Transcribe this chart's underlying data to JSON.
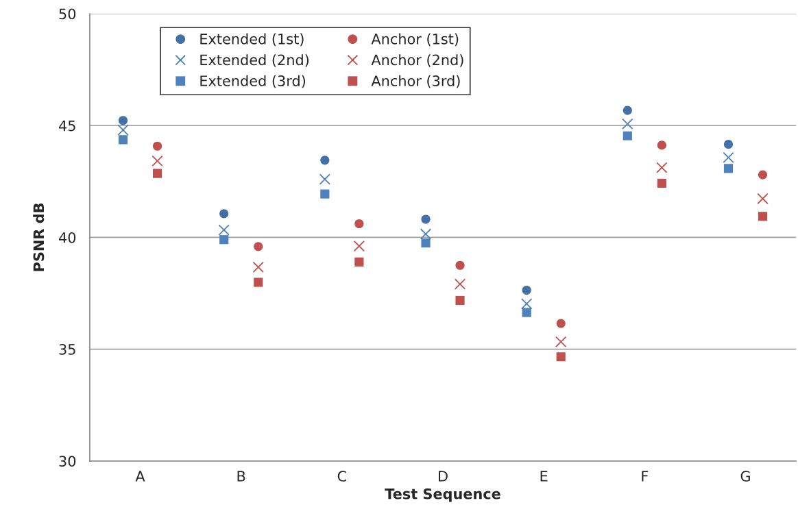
{
  "chart_data": {
    "type": "scatter",
    "xlabel": "Test Sequence",
    "ylabel": "PSNR dB",
    "categories": [
      "A",
      "B",
      "C",
      "D",
      "E",
      "F",
      "G"
    ],
    "ylim": [
      30,
      50
    ],
    "yticks": [
      30,
      35,
      40,
      45,
      50
    ],
    "grid": "y",
    "legend": "top left",
    "series": [
      {
        "name": "Extended (1st)",
        "color": "#4470a8",
        "marker": "circle",
        "values": [
          45.23,
          41.06,
          43.45,
          40.81,
          37.64,
          45.68,
          44.16
        ]
      },
      {
        "name": "Extended (2nd)",
        "color": "#4f81bd",
        "marker": "cross",
        "values": [
          44.8,
          40.33,
          42.6,
          40.15,
          37.03,
          45.07,
          43.57
        ]
      },
      {
        "name": "Extended (3rd)",
        "color": "#4f81bd",
        "marker": "square",
        "values": [
          44.37,
          39.9,
          41.94,
          39.75,
          36.64,
          44.54,
          43.08
        ]
      },
      {
        "name": "Anchor (1st)",
        "color": "#c0504d",
        "marker": "circle",
        "values": [
          44.08,
          39.59,
          40.61,
          38.75,
          36.15,
          44.12,
          42.8
        ]
      },
      {
        "name": "Anchor (2nd)",
        "color": "#c0504d",
        "marker": "cross",
        "values": [
          43.42,
          38.67,
          39.61,
          37.91,
          35.33,
          43.12,
          41.73
        ]
      },
      {
        "name": "Anchor (3rd)",
        "color": "#c0504d",
        "marker": "square",
        "values": [
          42.86,
          37.99,
          38.9,
          37.18,
          34.66,
          42.42,
          40.94
        ]
      }
    ]
  }
}
